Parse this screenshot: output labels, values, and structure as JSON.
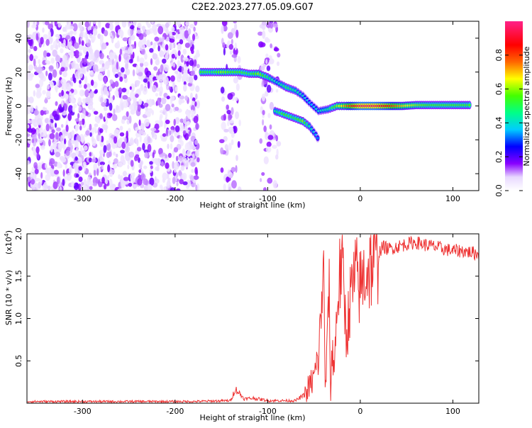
{
  "figure": {
    "title": "C2E2.2023.277.05.09.G07"
  },
  "chart_data": [
    {
      "type": "heatmap",
      "xlabel": "Height of straight line (km)",
      "ylabel": "Frequency (Hz)",
      "xlim": [
        -360,
        128
      ],
      "ylim": [
        -50,
        50
      ],
      "xticks": [
        -300,
        -200,
        -100,
        0,
        100
      ],
      "yticks": [
        -40,
        -20,
        0,
        20,
        40
      ],
      "grid": false,
      "noise_region": {
        "x": [
          -360,
          -175
        ],
        "y": [
          -50,
          50
        ]
      },
      "noise_strips": [
        [
          -150,
          -130
        ],
        [
          -108,
          -88
        ]
      ],
      "ridge": [
        {
          "x": -172,
          "y": 20,
          "amp": 0.55
        },
        {
          "x": -160,
          "y": 20,
          "amp": 0.5
        },
        {
          "x": -150,
          "y": 20,
          "amp": 0.6
        },
        {
          "x": -140,
          "y": 20,
          "amp": 0.55
        },
        {
          "x": -130,
          "y": 20,
          "amp": 0.55
        },
        {
          "x": -120,
          "y": 19,
          "amp": 0.5
        },
        {
          "x": -110,
          "y": 19,
          "amp": 0.6
        },
        {
          "x": -100,
          "y": 17,
          "amp": 0.5
        },
        {
          "x": -90,
          "y": 14,
          "amp": 0.4
        },
        {
          "x": -80,
          "y": 11,
          "amp": 0.5
        },
        {
          "x": -70,
          "y": 9,
          "amp": 0.45
        },
        {
          "x": -62,
          "y": 6,
          "amp": 0.4
        },
        {
          "x": -55,
          "y": 2,
          "amp": 0.35
        },
        {
          "x": -45,
          "y": -3,
          "amp": 0.4
        },
        {
          "x": -35,
          "y": -2,
          "amp": 0.45
        },
        {
          "x": -25,
          "y": 0,
          "amp": 0.6
        },
        {
          "x": -15,
          "y": 0,
          "amp": 0.75
        },
        {
          "x": 0,
          "y": 0,
          "amp": 0.95
        },
        {
          "x": 15,
          "y": 0,
          "amp": 0.95
        },
        {
          "x": 30,
          "y": 0,
          "amp": 0.85
        },
        {
          "x": 45,
          "y": 0,
          "amp": 0.7
        },
        {
          "x": 60,
          "y": 0.5,
          "amp": 0.6
        },
        {
          "x": 75,
          "y": 0.5,
          "amp": 0.55
        },
        {
          "x": 90,
          "y": 0.5,
          "amp": 0.55
        },
        {
          "x": 105,
          "y": 0.5,
          "amp": 0.55
        },
        {
          "x": 120,
          "y": 0.5,
          "amp": 0.55
        }
      ],
      "branch": [
        {
          "x": -92,
          "y": -3,
          "amp": 0.45
        },
        {
          "x": -82,
          "y": -5,
          "amp": 0.55
        },
        {
          "x": -72,
          "y": -7,
          "amp": 0.5
        },
        {
          "x": -62,
          "y": -9,
          "amp": 0.6
        },
        {
          "x": -55,
          "y": -12,
          "amp": 0.45
        },
        {
          "x": -48,
          "y": -17,
          "amp": 0.35
        },
        {
          "x": -44,
          "y": -21,
          "amp": 0.3
        }
      ],
      "colorbar": {
        "label": "Normalized spectral amplitude",
        "ticks": [
          "0.0",
          "0.2",
          "0.4",
          "0.6",
          "0.8"
        ],
        "range": [
          0,
          1
        ]
      }
    },
    {
      "type": "line",
      "xlabel": "Height of straight line (km)",
      "ylabel": "SNR (10 * v/v)",
      "y_multiplier": "(x10",
      "y_multiplier_exp": "4",
      "y_multiplier_close": ")",
      "xlim": [
        -360,
        128
      ],
      "ylim": [
        0,
        2.0
      ],
      "xticks": [
        -300,
        -200,
        -100,
        0,
        100
      ],
      "yticks": [
        "0.5",
        "1.0",
        "1.5",
        "2.0"
      ],
      "color": "#ee3333",
      "grid": false,
      "series": [
        {
          "x": [
            -360,
            -300,
            -200,
            -180,
            -140,
            -135,
            -125,
            -115,
            -100,
            -70,
            -60,
            -50,
            -45,
            -42,
            -40,
            -38,
            -36,
            -34,
            -32,
            -30,
            -28,
            -25,
            -20,
            -15,
            -10,
            -5,
            0,
            5,
            10,
            15,
            20,
            25,
            30,
            40,
            50,
            60,
            70,
            80,
            90,
            100,
            110,
            120,
            128
          ],
          "y": [
            0.02,
            0.02,
            0.02,
            0.02,
            0.03,
            0.17,
            0.05,
            0.06,
            0.03,
            0.03,
            0.1,
            0.3,
            0.55,
            1.1,
            1.8,
            0.2,
            0.5,
            1.55,
            0.1,
            0.7,
            0.4,
            1.2,
            1.7,
            0.8,
            1.3,
            1.5,
            1.35,
            1.55,
            1.6,
            1.7,
            1.78,
            1.85,
            1.82,
            1.85,
            1.88,
            1.9,
            1.87,
            1.85,
            1.82,
            1.8,
            1.8,
            1.78,
            1.76
          ]
        }
      ]
    }
  ]
}
